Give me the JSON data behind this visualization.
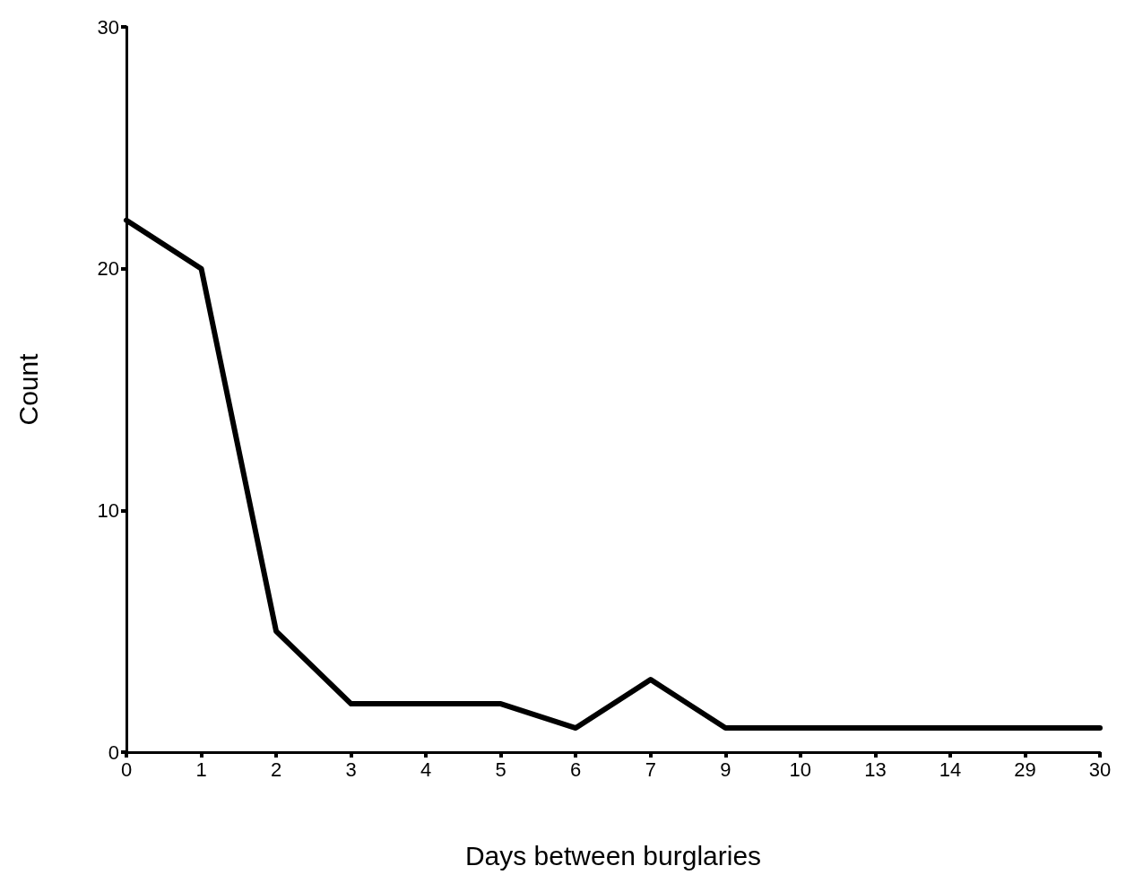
{
  "chart_data": {
    "type": "line",
    "xlabel": "Days between burglaries",
    "ylabel": "Count",
    "categories": [
      "0",
      "1",
      "2",
      "3",
      "4",
      "5",
      "6",
      "7",
      "9",
      "10",
      "13",
      "14",
      "29",
      "30"
    ],
    "series": [
      {
        "color": "#000000",
        "values": [
          22,
          20,
          5,
          2,
          2,
          2,
          1,
          3,
          1,
          1,
          1,
          1,
          1,
          1
        ]
      }
    ],
    "ylim": [
      0,
      30
    ],
    "yticks": [
      0,
      10,
      20,
      30
    ],
    "grid": false,
    "marker": "none",
    "line_style": "solid"
  }
}
